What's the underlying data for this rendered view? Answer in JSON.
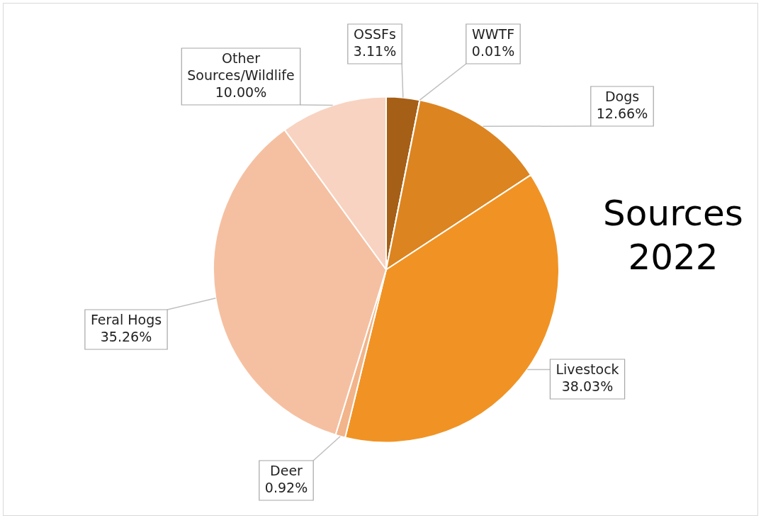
{
  "chart_data": {
    "type": "pie",
    "title": "Sources 2022",
    "categories": [
      "OSSFs",
      "WWTF",
      "Dogs",
      "Livestock",
      "Deer",
      "Feral Hogs",
      "Other Sources/Wildlife"
    ],
    "values": [
      3.11,
      0.01,
      12.66,
      38.03,
      0.92,
      35.26,
      10.0
    ],
    "colors": [
      "#a65f16",
      "#c9731c",
      "#dc8420",
      "#f09324",
      "#f2b48a",
      "#f5c0a1",
      "#f8d3c1"
    ],
    "value_labels": [
      "3.11%",
      "0.01%",
      "12.66%",
      "38.03%",
      "0.92%",
      "35.26%",
      "10.00%"
    ],
    "legend": false
  }
}
